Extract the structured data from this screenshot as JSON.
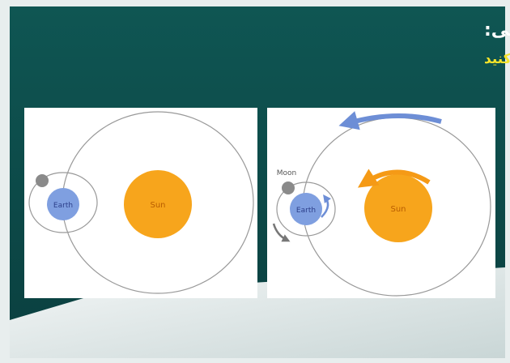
{
  "slide": {
    "title": "ارزشیابی:",
    "subtitle": "جهت چرخش زمین، ماه و خورشید را مشخص کنید"
  },
  "left_diagram": {
    "earth": "Earth",
    "sun": "Sun"
  },
  "right_diagram": {
    "moon": "Moon",
    "earth": "Earth",
    "sun": "Sun"
  }
}
